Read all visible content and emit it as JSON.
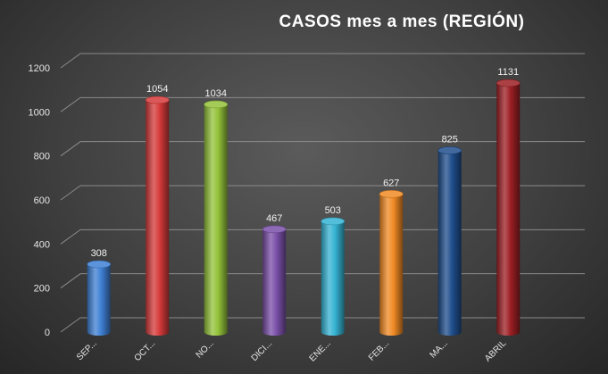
{
  "chart_data": {
    "type": "bar",
    "title": "CASOS  mes a mes (REGIÓN)",
    "xlabel": "",
    "ylabel": "",
    "categories": [
      "SEP...",
      "OCT...",
      "NO...",
      "DICI...",
      "ENE...",
      "FEB...",
      "MA...",
      "ABRIL"
    ],
    "values": [
      308,
      1054,
      1034,
      467,
      503,
      627,
      825,
      1131
    ],
    "ylim": [
      0,
      1200
    ],
    "yticks": [
      0,
      200,
      400,
      600,
      800,
      1000,
      1200
    ],
    "grid": true,
    "legend": "none",
    "colors": [
      "#3f80d4",
      "#d63a3a",
      "#94c23a",
      "#7a4fa8",
      "#35b3d3",
      "#f08a24",
      "#1f4e8c",
      "#9c1f24"
    ]
  }
}
